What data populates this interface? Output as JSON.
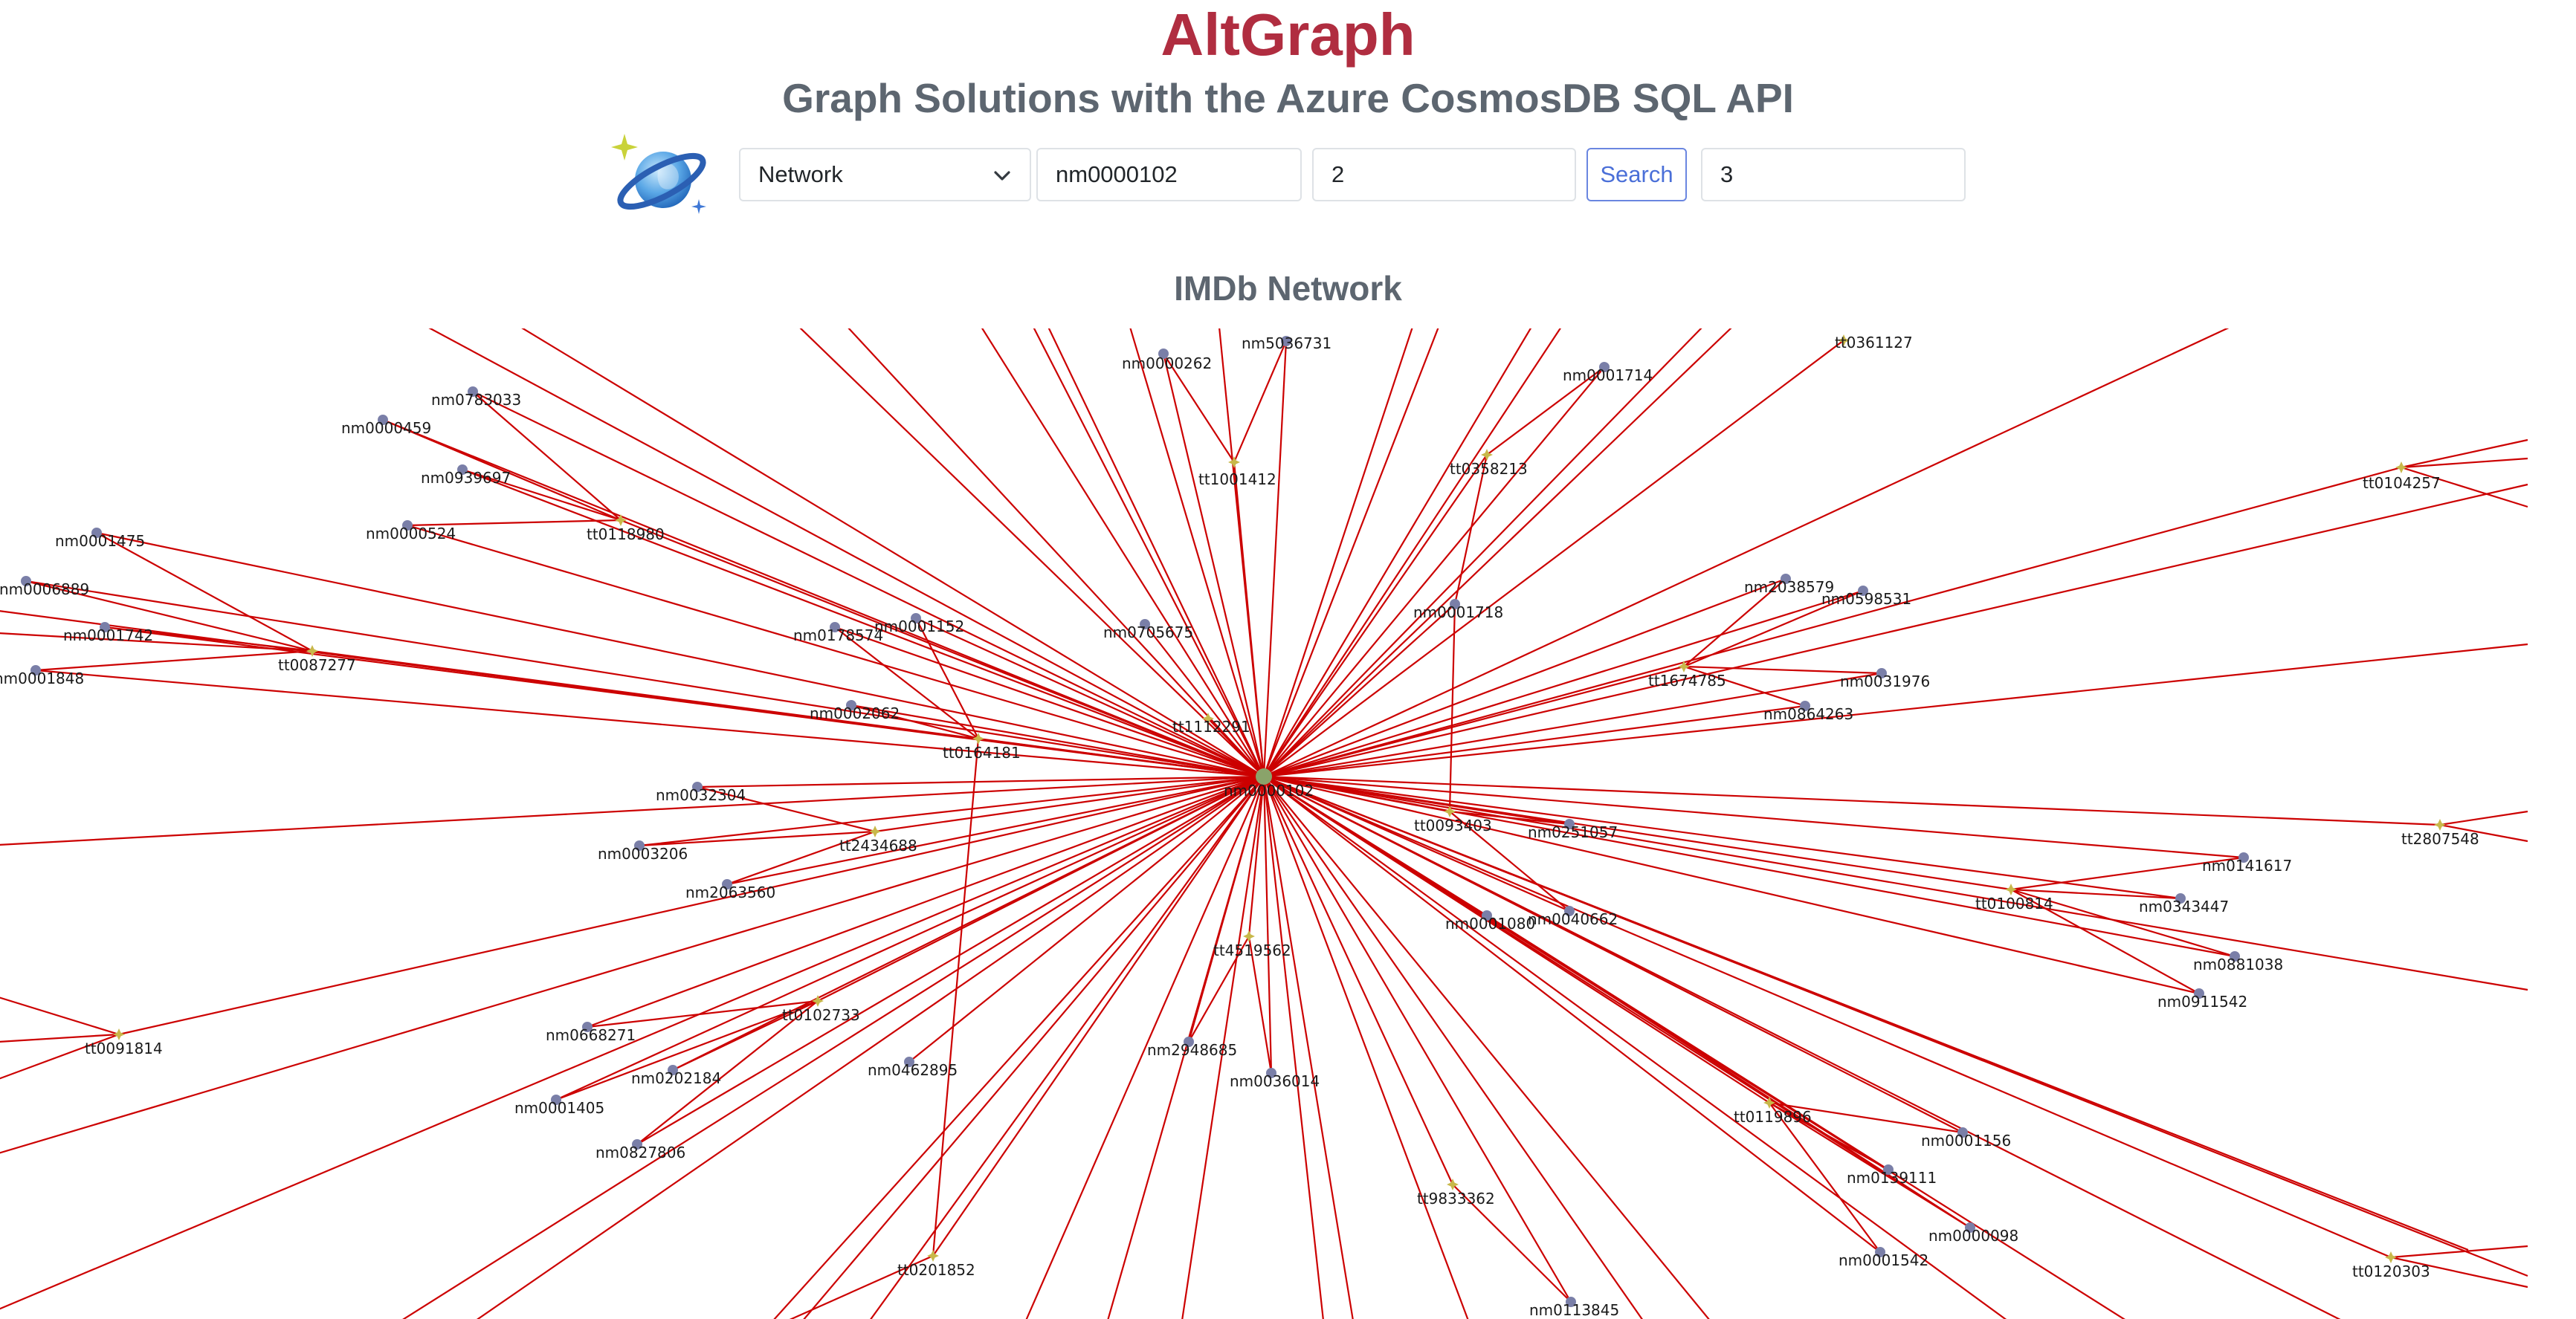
{
  "header": {
    "title": "AltGraph",
    "subtitle": "Graph Solutions with the Azure CosmosDB SQL API"
  },
  "toolbar": {
    "select_value": "Network",
    "input_start": "nm0000102",
    "input_depth": "2",
    "search_label": "Search",
    "input_limit": "3"
  },
  "section": {
    "title": "IMDb Network"
  },
  "colors": {
    "title": "#b02d40",
    "edge": "#cc0000",
    "person_node": "#7a7fa8",
    "title_node": "#c8b84a",
    "search_border": "#6a86e0"
  },
  "graph": {
    "center": "nm0000102",
    "nodes": [
      {
        "id": "nm0000102",
        "kind": "person"
      },
      {
        "id": "tt0361127",
        "kind": "title"
      },
      {
        "id": "nm5036731",
        "kind": "person"
      },
      {
        "id": "nm0000262",
        "kind": "person"
      },
      {
        "id": "tt1001412",
        "kind": "title"
      },
      {
        "id": "nm0001714",
        "kind": "person"
      },
      {
        "id": "tt0358213",
        "kind": "title"
      },
      {
        "id": "tt0104257",
        "kind": "title"
      },
      {
        "id": "nm0783033",
        "kind": "person"
      },
      {
        "id": "nm0000459",
        "kind": "person"
      },
      {
        "id": "nm0939697",
        "kind": "person"
      },
      {
        "id": "nm0000524",
        "kind": "person"
      },
      {
        "id": "tt0118980",
        "kind": "title"
      },
      {
        "id": "nm0001475",
        "kind": "person"
      },
      {
        "id": "nm0006889",
        "kind": "person"
      },
      {
        "id": "nm0001742",
        "kind": "person"
      },
      {
        "id": "nm0001848",
        "kind": "person"
      },
      {
        "id": "tt0087277",
        "kind": "title"
      },
      {
        "id": "nm0178574",
        "kind": "person"
      },
      {
        "id": "nm0001152",
        "kind": "person"
      },
      {
        "id": "nm0705675",
        "kind": "person"
      },
      {
        "id": "nm0001718",
        "kind": "person"
      },
      {
        "id": "nm2038579",
        "kind": "person"
      },
      {
        "id": "nm0598531",
        "kind": "person"
      },
      {
        "id": "tt1674785",
        "kind": "title"
      },
      {
        "id": "nm0031976",
        "kind": "person"
      },
      {
        "id": "nm0864263",
        "kind": "person"
      },
      {
        "id": "nm0002062",
        "kind": "person"
      },
      {
        "id": "tt1112291",
        "kind": "title"
      },
      {
        "id": "tt0164181",
        "kind": "title"
      },
      {
        "id": "nm0032304",
        "kind": "person"
      },
      {
        "id": "nm0003206",
        "kind": "person"
      },
      {
        "id": "tt2434688",
        "kind": "title"
      },
      {
        "id": "nm2063560",
        "kind": "person"
      },
      {
        "id": "tt0093403",
        "kind": "title"
      },
      {
        "id": "nm0251057",
        "kind": "person"
      },
      {
        "id": "tt2807548",
        "kind": "title"
      },
      {
        "id": "nm0141617",
        "kind": "person"
      },
      {
        "id": "tt0100814",
        "kind": "title"
      },
      {
        "id": "nm0343447",
        "kind": "person"
      },
      {
        "id": "nm0040662",
        "kind": "person"
      },
      {
        "id": "nm0001080",
        "kind": "person"
      },
      {
        "id": "nm0881038",
        "kind": "person"
      },
      {
        "id": "nm0911542",
        "kind": "person"
      },
      {
        "id": "tt4519562",
        "kind": "title"
      },
      {
        "id": "tt0091814",
        "kind": "title"
      },
      {
        "id": "tt0102733",
        "kind": "title"
      },
      {
        "id": "nm0668271",
        "kind": "person"
      },
      {
        "id": "nm0202184",
        "kind": "person"
      },
      {
        "id": "nm0001405",
        "kind": "person"
      },
      {
        "id": "nm0827806",
        "kind": "person"
      },
      {
        "id": "nm0462895",
        "kind": "person"
      },
      {
        "id": "nm2948685",
        "kind": "person"
      },
      {
        "id": "nm0036014",
        "kind": "person"
      },
      {
        "id": "tt0119896",
        "kind": "title"
      },
      {
        "id": "nm0001156",
        "kind": "person"
      },
      {
        "id": "nm0139111",
        "kind": "person"
      },
      {
        "id": "nm0000098",
        "kind": "person"
      },
      {
        "id": "nm0001542",
        "kind": "person"
      },
      {
        "id": "tt9833362",
        "kind": "title"
      },
      {
        "id": "nm0113845",
        "kind": "person"
      },
      {
        "id": "tt0201852",
        "kind": "title"
      },
      {
        "id": "tt0120303",
        "kind": "title"
      }
    ],
    "edges": [
      [
        "tt1001412",
        "nm5036731"
      ],
      [
        "tt1001412",
        "nm0000262"
      ],
      [
        "tt0358213",
        "nm0001714"
      ],
      [
        "tt0358213",
        "nm0001718"
      ],
      [
        "tt0118980",
        "nm0783033"
      ],
      [
        "tt0118980",
        "nm0000459"
      ],
      [
        "tt0118980",
        "nm0939697"
      ],
      [
        "tt0118980",
        "nm0000524"
      ],
      [
        "tt0087277",
        "nm0001475"
      ],
      [
        "tt0087277",
        "nm0006889"
      ],
      [
        "tt0087277",
        "nm0001742"
      ],
      [
        "tt0087277",
        "nm0001848"
      ],
      [
        "tt0164181",
        "nm0178574"
      ],
      [
        "tt0164181",
        "nm0001152"
      ],
      [
        "tt0164181",
        "nm0002062"
      ],
      [
        "tt0164181",
        "tt0201852"
      ],
      [
        "tt1674785",
        "nm2038579"
      ],
      [
        "tt1674785",
        "nm0598531"
      ],
      [
        "tt1674785",
        "nm0031976"
      ],
      [
        "tt1674785",
        "nm0864263"
      ],
      [
        "tt2434688",
        "nm0032304"
      ],
      [
        "tt2434688",
        "nm0003206"
      ],
      [
        "tt2434688",
        "nm2063560"
      ],
      [
        "tt0093403",
        "nm0251057"
      ],
      [
        "tt0093403",
        "nm0040662"
      ],
      [
        "tt0093403",
        "nm0001718"
      ],
      [
        "tt0100814",
        "nm0141617"
      ],
      [
        "tt0100814",
        "nm0343447"
      ],
      [
        "tt0100814",
        "nm0881038"
      ],
      [
        "tt0100814",
        "nm0911542"
      ],
      [
        "tt0102733",
        "nm0668271"
      ],
      [
        "tt0102733",
        "nm0202184"
      ],
      [
        "tt0102733",
        "nm0001405"
      ],
      [
        "tt0102733",
        "nm0827806"
      ],
      [
        "tt4519562",
        "nm2948685"
      ],
      [
        "tt4519562",
        "nm0036014"
      ],
      [
        "tt0119896",
        "nm0001156"
      ],
      [
        "tt0119896",
        "nm0139111"
      ],
      [
        "tt0119896",
        "nm0000098"
      ],
      [
        "tt0119896",
        "nm0001542"
      ],
      [
        "tt9833362",
        "nm0113845"
      ],
      [
        "nm0001080",
        "nm0139111"
      ],
      [
        "nm0001080",
        "nm0000098"
      ]
    ]
  }
}
